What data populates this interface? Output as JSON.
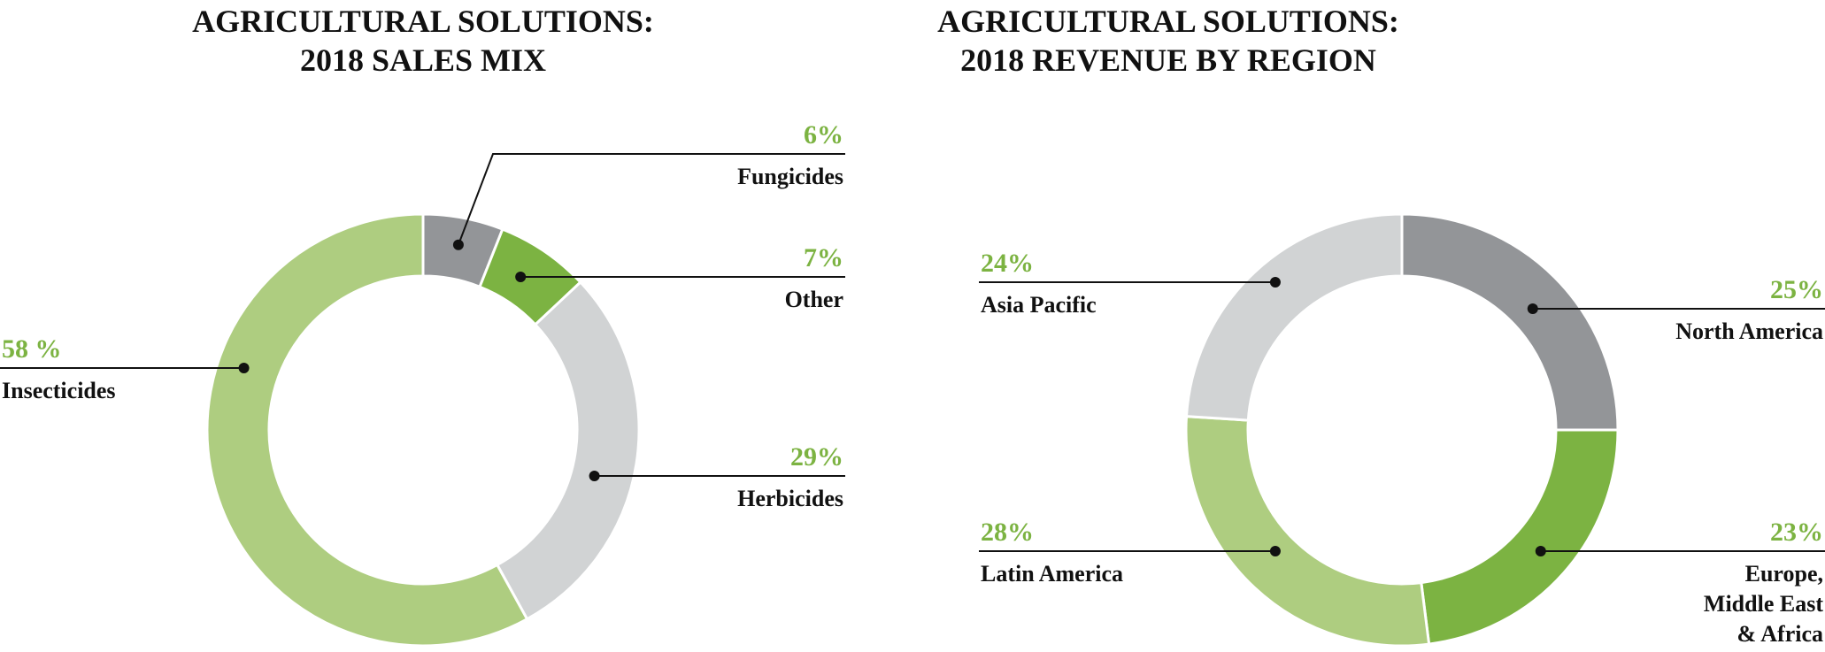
{
  "chart_data": [
    {
      "type": "pie",
      "title_lines": [
        "AGRICULTURAL SOLUTIONS:",
        "2018 SALES MIX"
      ],
      "labels": [
        "Fungicides",
        "Other",
        "Herbicides",
        "Insecticides"
      ],
      "values": [
        6,
        7,
        29,
        58
      ],
      "value_labels": [
        "6%",
        "7%",
        "29%",
        "58 %"
      ],
      "colors": [
        "#939598",
        "#7cb342",
        "#d1d3d4",
        "#aecd80"
      ]
    },
    {
      "type": "pie",
      "title_lines": [
        "AGRICULTURAL SOLUTIONS:",
        "2018 REVENUE BY REGION"
      ],
      "labels": [
        "North America",
        "Europe, Middle East & Africa",
        "Latin America",
        "Asia Pacific"
      ],
      "label_lines": [
        [
          "North America"
        ],
        [
          "Europe,",
          "Middle East",
          "& Africa"
        ],
        [
          "Latin America"
        ],
        [
          "Asia Pacific"
        ]
      ],
      "values": [
        25,
        23,
        28,
        24
      ],
      "value_labels": [
        "25%",
        "23%",
        "28%",
        "24%"
      ],
      "colors": [
        "#939598",
        "#7cb342",
        "#aecd80",
        "#d1d3d4"
      ]
    }
  ],
  "style": {
    "value_color": "#7cb342",
    "label_color": "#111111",
    "line_color": "#111111"
  }
}
